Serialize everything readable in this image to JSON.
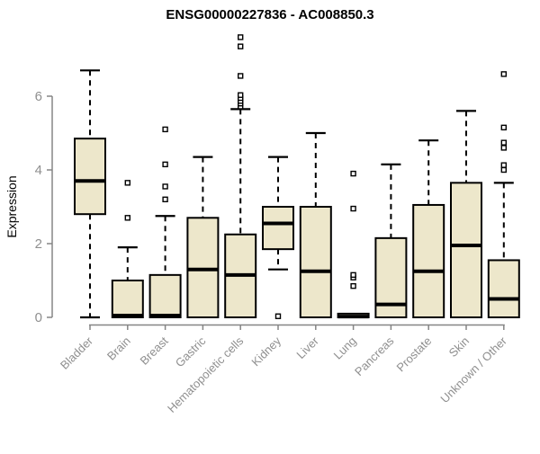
{
  "colors": {
    "background": "#FFFFFF",
    "box_fill": "#EDE7CB",
    "box_stroke": "#000000",
    "median": "#000000",
    "whisker": "#000000",
    "outlier_stroke": "#000000",
    "outlier_fill": "#FFFFFF",
    "axis": "#858585",
    "tick_label": "#8F8F8F",
    "title": "#000000"
  },
  "chart_data": {
    "type": "boxplot",
    "title": "ENSG00000227836 - AC008850.3",
    "ylabel": "Expression",
    "xlabel": "",
    "ylim": [
      0,
      7.8
    ],
    "yticks": [
      0,
      2,
      4,
      6
    ],
    "grid": "off",
    "legend": "none",
    "categories": [
      "Bladder",
      "Brain",
      "Breast",
      "Gastric",
      "Hematopoietic cells",
      "Kidney",
      "Liver",
      "Lung",
      "Pancreas",
      "Prostate",
      "Skin",
      "Unknown / Other"
    ],
    "boxes": [
      {
        "label": "Bladder",
        "whisker_low": 0,
        "q1": 2.8,
        "median": 3.7,
        "q3": 4.85,
        "whisker_high": 6.7,
        "outliers": []
      },
      {
        "label": "Brain",
        "whisker_low": 0,
        "q1": 0,
        "median": 0.05,
        "q3": 1.0,
        "whisker_high": 1.9,
        "outliers": [
          2.7,
          3.65
        ]
      },
      {
        "label": "Breast",
        "whisker_low": 0,
        "q1": 0,
        "median": 0.05,
        "q3": 1.15,
        "whisker_high": 2.75,
        "outliers": [
          3.2,
          3.55,
          4.15,
          5.1
        ]
      },
      {
        "label": "Gastric",
        "whisker_low": 0,
        "q1": 0,
        "median": 1.3,
        "q3": 2.7,
        "whisker_high": 4.35,
        "outliers": []
      },
      {
        "label": "Hematopoietic cells",
        "whisker_low": 0,
        "q1": 0,
        "median": 1.15,
        "q3": 2.25,
        "whisker_high": 5.65,
        "outliers": [
          5.72,
          5.8,
          5.87,
          5.95,
          6.03,
          6.55,
          7.35,
          7.6
        ]
      },
      {
        "label": "Kidney",
        "whisker_low": 1.3,
        "q1": 1.85,
        "median": 2.55,
        "q3": 3.0,
        "whisker_high": 4.35,
        "outliers": [
          0.03
        ]
      },
      {
        "label": "Liver",
        "whisker_low": 0,
        "q1": 0,
        "median": 1.25,
        "q3": 3.0,
        "whisker_high": 5.0,
        "outliers": []
      },
      {
        "label": "Lung",
        "whisker_low": 0,
        "q1": 0,
        "median": 0.02,
        "q3": 0.1,
        "whisker_high": 0.1,
        "outliers": [
          0.85,
          1.08,
          1.15,
          2.95,
          3.9
        ]
      },
      {
        "label": "Pancreas",
        "whisker_low": 0,
        "q1": 0,
        "median": 0.35,
        "q3": 2.15,
        "whisker_high": 4.15,
        "outliers": []
      },
      {
        "label": "Prostate",
        "whisker_low": 0,
        "q1": 0,
        "median": 1.25,
        "q3": 3.05,
        "whisker_high": 4.8,
        "outliers": []
      },
      {
        "label": "Skin",
        "whisker_low": 0,
        "q1": 0,
        "median": 1.95,
        "q3": 3.65,
        "whisker_high": 5.6,
        "outliers": []
      },
      {
        "label": "Unknown / Other",
        "whisker_low": 0,
        "q1": 0,
        "median": 0.5,
        "q3": 1.55,
        "whisker_high": 3.65,
        "outliers": [
          4.0,
          4.13,
          4.6,
          4.74,
          5.15,
          6.6
        ]
      }
    ]
  }
}
